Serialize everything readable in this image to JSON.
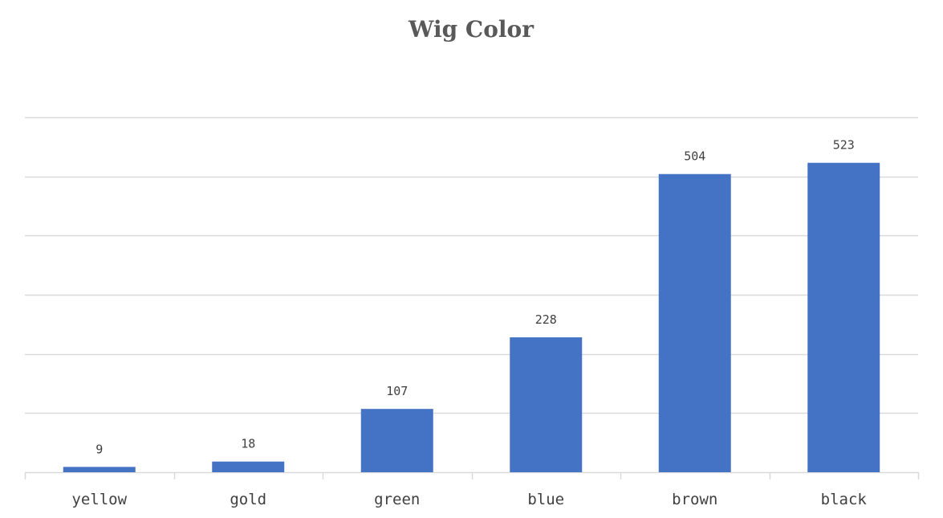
{
  "chart_data": {
    "type": "bar",
    "title": "Wig Color",
    "categories": [
      "yellow",
      "gold",
      "green",
      "blue",
      "brown",
      "black"
    ],
    "values": [
      9,
      18,
      107,
      228,
      504,
      523
    ],
    "xlabel": "",
    "ylabel": "",
    "ylim": [
      0,
      600
    ],
    "grid": true,
    "legend": "none",
    "bar_color": "#4472C4",
    "grid_color": "#D9D9D9",
    "show_data_labels": true
  }
}
